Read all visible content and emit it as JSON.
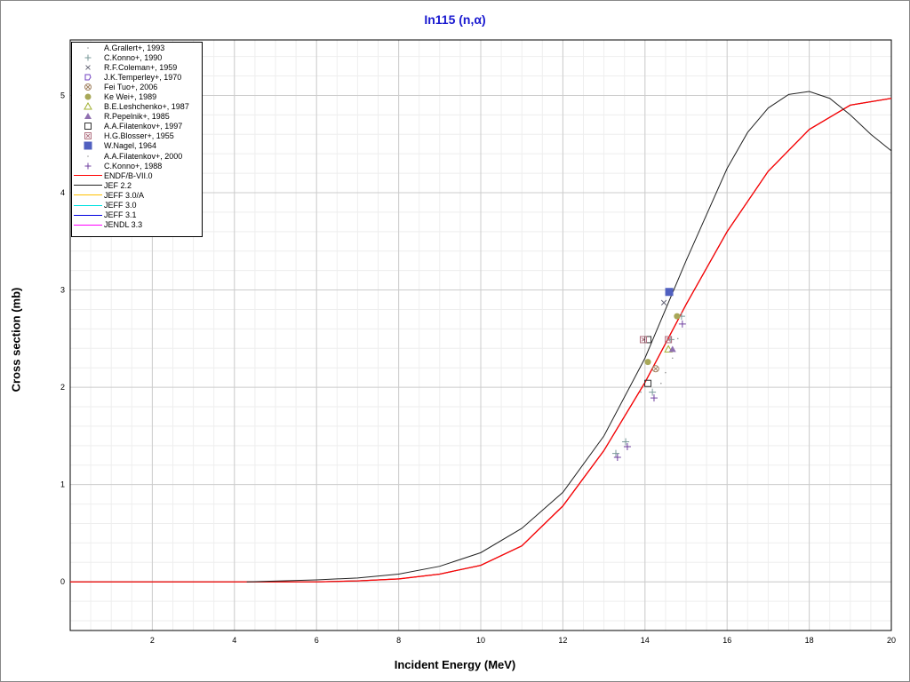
{
  "chart_data": {
    "type": "scatter",
    "title": "In115 (n,α)",
    "xlabel": "Incident Energy (MeV)",
    "ylabel": "Cross section (mb)",
    "xlim": [
      0,
      20
    ],
    "ylim": [
      -0.5,
      5.57
    ],
    "xticks": [
      "2",
      "4",
      "6",
      "8",
      "10",
      "12",
      "14",
      "16",
      "18",
      "20"
    ],
    "yticks": [
      "0",
      "1",
      "2",
      "3",
      "4",
      "5"
    ],
    "grid": true,
    "legend_position": "top-left",
    "experimental": [
      {
        "name": "A.Grallert+, 1993",
        "marker": "dot",
        "color": "#999999",
        "points": [
          [
            14.67,
            2.3
          ],
          [
            14.39,
            2.04
          ],
          [
            14.8,
            2.5
          ]
        ]
      },
      {
        "name": "C.Konno+, 1990",
        "marker": "plus",
        "color": "#7a9a9a",
        "points": [
          [
            14.89,
            2.73
          ],
          [
            14.63,
            2.49
          ],
          [
            14.18,
            1.95
          ],
          [
            13.53,
            1.44
          ],
          [
            13.29,
            1.32
          ]
        ]
      },
      {
        "name": "R.F.Coleman+, 1959",
        "marker": "x",
        "color": "#666677",
        "points": [
          [
            14.46,
            2.87
          ]
        ]
      },
      {
        "name": "J.K.Temperley+, 1970",
        "marker": "pentagon",
        "color": "#7040c0",
        "points": []
      },
      {
        "name": "Fei Tuo+, 2006",
        "marker": "circle-x",
        "color": "#a08060",
        "points": [
          [
            14.26,
            2.19
          ]
        ]
      },
      {
        "name": "Ke Wei+, 1989",
        "marker": "filled-circle",
        "color": "#a8a858",
        "points": [
          [
            14.78,
            2.73
          ],
          [
            14.07,
            2.26
          ]
        ]
      },
      {
        "name": "B.E.Leshchenko+, 1987",
        "marker": "triangle",
        "color": "#a0b030",
        "points": [
          [
            14.57,
            2.39
          ]
        ]
      },
      {
        "name": "R.Pepelnik+, 1985",
        "marker": "filled-triangle",
        "color": "#9070b0",
        "points": [
          [
            14.67,
            2.39
          ]
        ]
      },
      {
        "name": "A.A.Filatenkov+, 1997",
        "marker": "square",
        "color": "#333333",
        "points": [
          [
            14.07,
            2.04
          ],
          [
            14.07,
            2.49
          ]
        ]
      },
      {
        "name": "H.G.Blosser+, 1955",
        "marker": "square-x",
        "color": "#b07080",
        "points": [
          [
            13.96,
            2.49
          ],
          [
            14.57,
            2.49
          ]
        ]
      },
      {
        "name": "W.Nagel, 1964",
        "marker": "filled-square",
        "color": "#5060c0",
        "points": [
          [
            14.59,
            2.98
          ]
        ]
      },
      {
        "name": "A.A.Filatenkov+, 2000",
        "marker": "dot",
        "color": "#999999",
        "points": [
          [
            14.5,
            2.15
          ],
          [
            13.9,
            1.95
          ]
        ]
      },
      {
        "name": "C.Konno+, 1988",
        "marker": "plus",
        "color": "#7040a0",
        "points": [
          [
            14.91,
            2.65
          ],
          [
            14.22,
            1.89
          ],
          [
            13.57,
            1.39
          ],
          [
            13.33,
            1.28
          ]
        ]
      }
    ],
    "evaluated": [
      {
        "name": "ENDF/B-VII.0",
        "color": "#ff0000",
        "x": [
          0,
          4,
          6,
          7,
          8,
          9,
          10,
          11,
          12,
          13,
          14,
          15,
          16,
          17,
          18,
          19,
          20
        ],
        "y": [
          0,
          0,
          0,
          0.01,
          0.03,
          0.08,
          0.17,
          0.37,
          0.78,
          1.35,
          2.05,
          2.85,
          3.6,
          4.22,
          4.65,
          4.9,
          4.97
        ]
      },
      {
        "name": "JEF 2.2",
        "color": "#222222",
        "x": [
          4.3,
          6,
          7,
          8,
          9,
          10,
          11,
          12,
          13,
          14,
          15,
          16,
          16.5,
          17,
          17.5,
          18,
          18.5,
          19,
          19.5,
          20
        ],
        "y": [
          0,
          0.02,
          0.04,
          0.08,
          0.16,
          0.3,
          0.55,
          0.92,
          1.5,
          2.3,
          3.3,
          4.25,
          4.62,
          4.87,
          5.01,
          5.04,
          4.97,
          4.8,
          4.6,
          4.43
        ]
      },
      {
        "name": "JEFF 3.0/A",
        "color": "#ffc000",
        "x": [
          0,
          4,
          6,
          7,
          8,
          9,
          10,
          11,
          12,
          13,
          14,
          15,
          16,
          17,
          18,
          19,
          20
        ],
        "y": [
          0,
          0,
          0,
          0.01,
          0.03,
          0.08,
          0.17,
          0.37,
          0.78,
          1.35,
          2.05,
          2.85,
          3.6,
          4.22,
          4.65,
          4.9,
          4.97
        ]
      },
      {
        "name": "JEFF 3.0",
        "color": "#00e0e0",
        "x": [
          0,
          4,
          6,
          7,
          8,
          9,
          10,
          11,
          12,
          13,
          14,
          15,
          16,
          17,
          18,
          19,
          20
        ],
        "y": [
          0,
          0,
          0,
          0.01,
          0.03,
          0.08,
          0.17,
          0.37,
          0.78,
          1.35,
          2.05,
          2.85,
          3.6,
          4.22,
          4.65,
          4.9,
          4.97
        ]
      },
      {
        "name": "JEFF 3.1",
        "color": "#0000e0",
        "x": [
          0,
          4,
          6,
          7,
          8,
          9,
          10,
          11,
          12,
          13,
          14,
          15,
          16,
          17,
          18,
          19,
          20
        ],
        "y": [
          0,
          0,
          0,
          0.01,
          0.03,
          0.08,
          0.17,
          0.37,
          0.78,
          1.35,
          2.05,
          2.85,
          3.6,
          4.22,
          4.65,
          4.9,
          4.97
        ]
      },
      {
        "name": "JENDL 3.3",
        "color": "#ff00ff",
        "x": [
          0,
          4,
          6,
          7,
          8,
          9,
          10,
          11,
          12,
          13,
          14,
          15,
          16,
          17,
          18,
          19,
          20
        ],
        "y": [
          0,
          0,
          0,
          0.01,
          0.03,
          0.08,
          0.17,
          0.37,
          0.78,
          1.35,
          2.05,
          2.85,
          3.6,
          4.22,
          4.65,
          4.9,
          4.97
        ]
      }
    ]
  }
}
